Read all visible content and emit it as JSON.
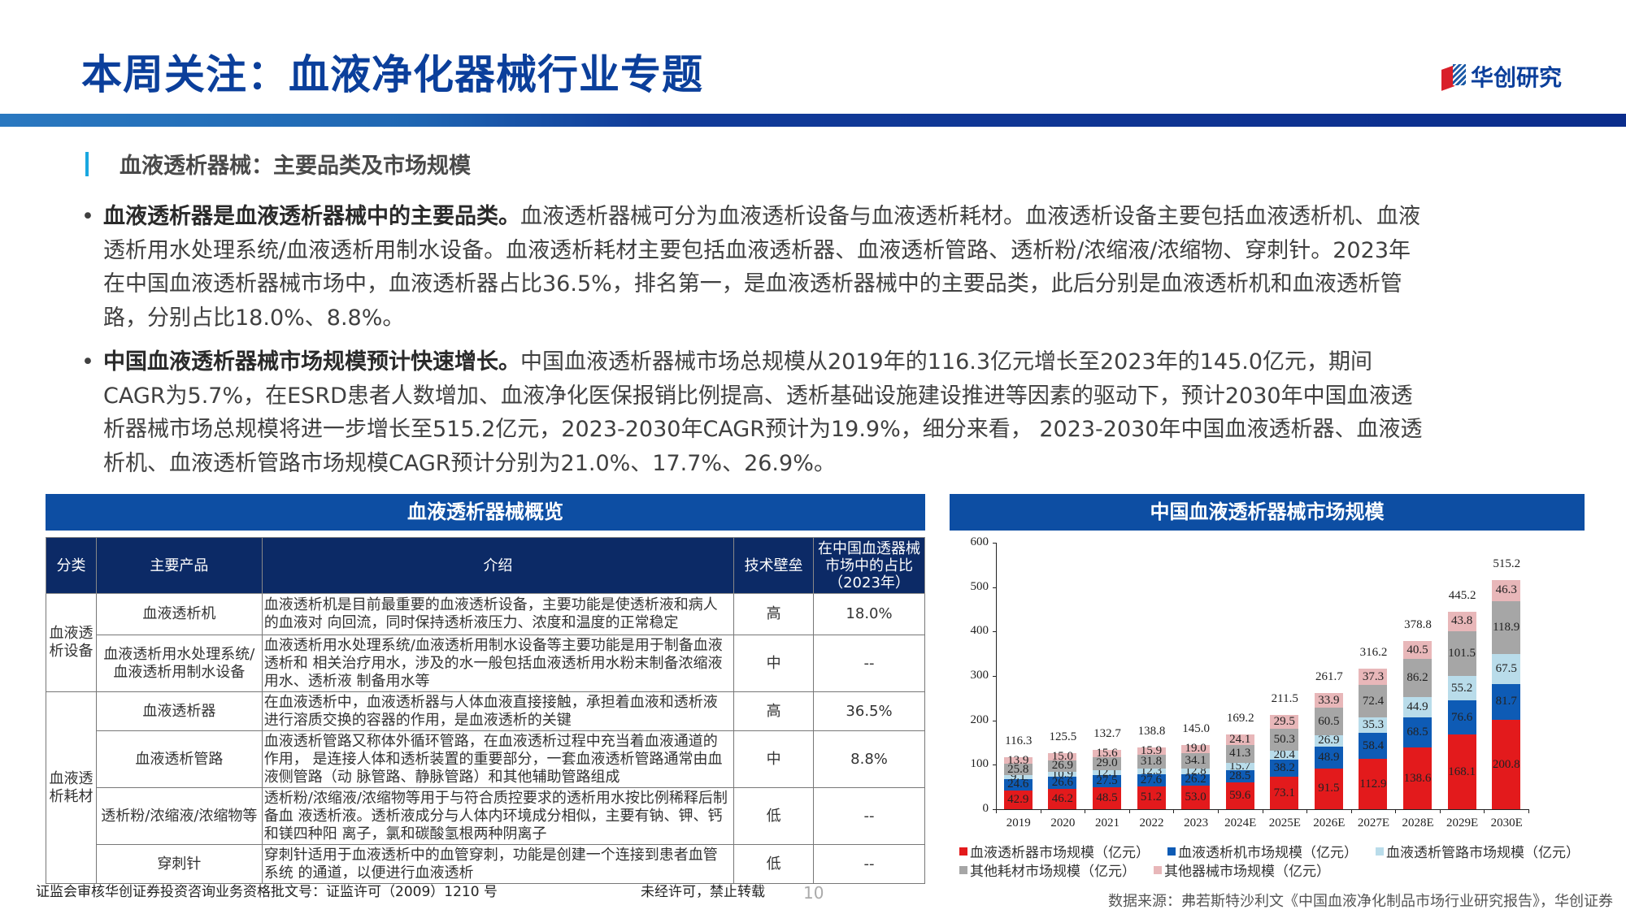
{
  "header": {
    "title": "本周关注：血液净化器械行业专题",
    "logo_text": "华创研究",
    "band_colors": [
      "#2a78c0",
      "#0b2d8c"
    ]
  },
  "section": {
    "title": "血液透析器械：主要品类及市场规模"
  },
  "paragraphs": [
    {
      "bold": "血液透析器是血液透析器械中的主要品类。",
      "text": "血液透析器械可分为血液透析设备与血液透析耗材。血液透析设备主要包括血液透析机、血液透析用水处理系统/血液透析用制水设备。血液透析耗材主要包括血液透析器、血液透析管路、透析粉/浓缩液/浓缩物、穿刺针。2023年在中国血液透析器械市场中，血液透析器占比36.5%，排名第一，是血液透析器械中的主要品类，此后分别是血液透析机和血液透析管路，分别占比18.0%、8.8%。"
    },
    {
      "bold": "中国血液透析器械市场规模预计快速增长。",
      "text": "中国血液透析器械市场总规模从2019年的116.3亿元增长至2023年的145.0亿元，期间CAGR为5.7%，在ESRD患者人数增加、血液净化医保报销比例提高、透析基础设施建设推进等因素的驱动下，预计2030年中国血液透析器械市场总规模将进一步增长至515.2亿元，2023-2030年CAGR预计为19.9%，细分来看， 2023-2030年中国血液透析器、血液透析机、血液透析管路市场规模CAGR预计分别为21.0%、17.7%、26.9%。"
    }
  ],
  "table": {
    "title": "血液透析器械概览",
    "headers": [
      "分类",
      "主要产品",
      "介绍",
      "技术壁垒",
      "在中国血透器械市场中的占比（2023年）"
    ],
    "groups": [
      {
        "category": "血液透析设备",
        "rows": [
          {
            "product": "血液透析机",
            "intro": "血液透析机是目前最重要的血液透析设备，主要功能是使透析液和病人的血液对 向回流，同时保持透析液压力、浓度和温度的正常稳定",
            "barrier": "高",
            "share": "18.0%"
          },
          {
            "product": "血液透析用水处理系统/血液透析用制水设备",
            "intro": "血液透析用水处理系统/血液透析用制水设备等主要功能是用于制备血液透析和 相关治疗用水，涉及的水一般包括血液透析用水粉末制备浓缩液用水、透析液 制备用水等",
            "barrier": "中",
            "share": "--"
          }
        ]
      },
      {
        "category": "血液透析耗材",
        "rows": [
          {
            "product": "血液透析器",
            "intro": "在血液透析中，血液透析器与人体血液直接接触，承担着血液和透析液进行溶质交换的容器的作用，是血液透析的关键",
            "barrier": "高",
            "share": "36.5%"
          },
          {
            "product": "血液透析管路",
            "intro": "血液透析管路又称体外循环管路，在血液透析过程中充当着血液通道的作用， 是连接人体和透析装置的重要部分，一套血液透析管路通常由血液侧管路（动 脉管路、静脉管路）和其他辅助管路组成",
            "barrier": "中",
            "share": "8.8%"
          },
          {
            "product": "透析粉/浓缩液/浓缩物等",
            "intro": "透析粉/浓缩液/浓缩物等用于与符合质控要求的透析用水按比例稀释后制备血 液透析液。透析液成分与人体内环境成分相似，主要有钠、钾、钙和镁四种阳 离子，氯和碳酸氢根两种阴离子",
            "barrier": "低",
            "share": "--"
          },
          {
            "product": "穿刺针",
            "intro": "穿刺针适用于血液透析中的血管穿刺，功能是创建一个连接到患者血管系统 的通道，以便进行血液透析",
            "barrier": "低",
            "share": "--"
          }
        ]
      }
    ]
  },
  "chart_title": "中国血液透析器械市场规模",
  "chart_data": {
    "type": "bar",
    "stacked": true,
    "title": "中国血液透析器械市场规模",
    "xlabel": "",
    "ylabel": "",
    "ylim": [
      0,
      600
    ],
    "yticks": [
      0,
      100,
      200,
      300,
      400,
      500,
      600
    ],
    "categories": [
      "2019",
      "2020",
      "2021",
      "2022",
      "2023",
      "2024E",
      "2025E",
      "2026E",
      "2027E",
      "2028E",
      "2029E",
      "2030E"
    ],
    "series": [
      {
        "name": "血液透析器市场规模（亿元）",
        "color": "#e31a1c",
        "values": [
          42.9,
          46.2,
          48.5,
          51.2,
          53.0,
          59.6,
          73.1,
          91.5,
          112.9,
          138.6,
          168.1,
          200.8
        ]
      },
      {
        "name": "血液透析机市场规模（亿元）",
        "color": "#0e5bb5",
        "values": [
          24.6,
          26.6,
          27.5,
          27.6,
          26.2,
          28.5,
          38.2,
          48.9,
          58.4,
          68.5,
          76.6,
          81.7
        ]
      },
      {
        "name": "血液透析管路市场规模（亿元）",
        "color": "#b9dcea",
        "values": [
          9.1,
          10.9,
          12.1,
          12.3,
          12.8,
          15.7,
          20.4,
          26.9,
          35.3,
          44.9,
          55.2,
          67.5
        ]
      },
      {
        "name": "其他耗材市场规模（亿元）",
        "color": "#a6a6a6",
        "values": [
          25.8,
          26.9,
          29.0,
          31.8,
          34.1,
          41.3,
          50.3,
          60.5,
          72.4,
          86.2,
          101.5,
          118.9
        ]
      },
      {
        "name": "其他器械市场规模（亿元）",
        "color": "#e8b7b9",
        "values": [
          13.9,
          15.0,
          15.6,
          15.9,
          19.0,
          24.1,
          29.5,
          33.9,
          37.3,
          40.5,
          43.8,
          46.3
        ]
      }
    ],
    "totals": [
      116.3,
      125.5,
      132.7,
      138.8,
      145.0,
      169.2,
      211.5,
      261.7,
      316.2,
      378.8,
      445.2,
      515.2
    ],
    "legend_position": "bottom",
    "grid": false
  },
  "source": "数据来源：弗若斯特沙利文《中国血液净化制品市场行业研究报告》，华创证券",
  "footer": {
    "license": "证监会审核华创证券投资咨询业务资格批文号：证监许可（2009）1210 号",
    "notice": "未经许可，禁止转载",
    "page_number": "10"
  }
}
